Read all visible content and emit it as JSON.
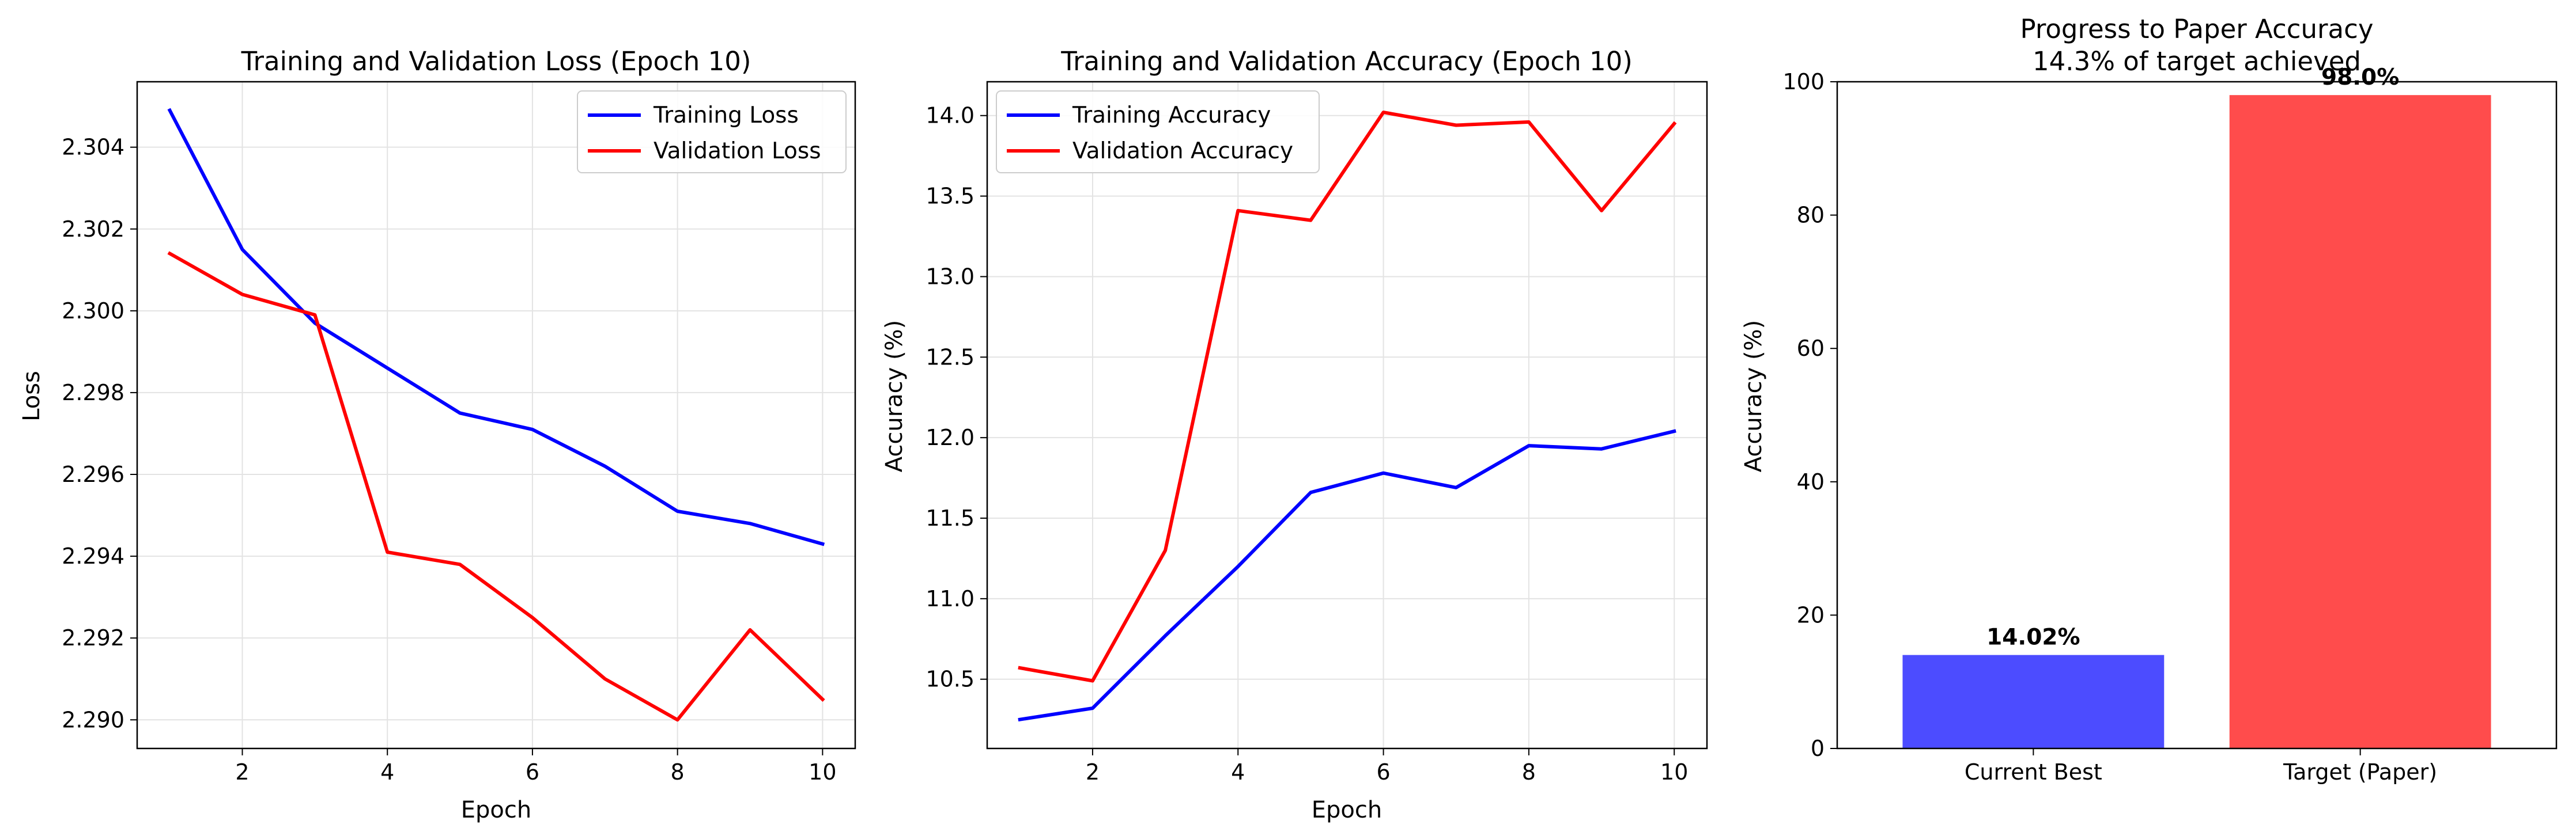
{
  "chart_data": [
    {
      "type": "line",
      "title": "Training and Validation Loss (Epoch 10)",
      "xlabel": "Epoch",
      "ylabel": "Loss",
      "x": [
        1,
        2,
        3,
        4,
        5,
        6,
        7,
        8,
        9,
        10
      ],
      "xticks": [
        2,
        4,
        6,
        8,
        10
      ],
      "yticks": [
        2.29,
        2.292,
        2.294,
        2.296,
        2.298,
        2.3,
        2.302,
        2.304
      ],
      "ytick_decimals": 3,
      "xlim": [
        0.55,
        10.45
      ],
      "ylim": [
        2.2893,
        2.3056
      ],
      "grid": true,
      "legend": "top-right",
      "series": [
        {
          "name": "Training Loss",
          "color": "#0000ff",
          "values": [
            2.3049,
            2.3015,
            2.2997,
            2.2986,
            2.2975,
            2.2971,
            2.2962,
            2.2951,
            2.2948,
            2.2943
          ]
        },
        {
          "name": "Validation Loss",
          "color": "#ff0000",
          "values": [
            2.3014,
            2.3004,
            2.2999,
            2.2941,
            2.2938,
            2.2925,
            2.291,
            2.29,
            2.2922,
            2.2905
          ]
        }
      ]
    },
    {
      "type": "line",
      "title": "Training and Validation Accuracy (Epoch 10)",
      "xlabel": "Epoch",
      "ylabel": "Accuracy (%)",
      "x": [
        1,
        2,
        3,
        4,
        5,
        6,
        7,
        8,
        9,
        10
      ],
      "xticks": [
        2,
        4,
        6,
        8,
        10
      ],
      "yticks": [
        10.5,
        11.0,
        11.5,
        12.0,
        12.5,
        13.0,
        13.5,
        14.0
      ],
      "ytick_decimals": 1,
      "xlim": [
        0.55,
        10.45
      ],
      "ylim": [
        10.07,
        14.21
      ],
      "grid": true,
      "legend": "top-left",
      "series": [
        {
          "name": "Training Accuracy",
          "color": "#0000ff",
          "values": [
            10.25,
            10.32,
            10.77,
            11.2,
            11.66,
            11.78,
            11.69,
            11.95,
            11.93,
            12.04
          ]
        },
        {
          "name": "Validation Accuracy",
          "color": "#ff0000",
          "values": [
            10.57,
            10.49,
            11.3,
            13.41,
            13.35,
            14.02,
            13.94,
            13.96,
            13.41,
            13.95
          ]
        }
      ]
    },
    {
      "type": "bar",
      "title": "Progress to Paper Accuracy",
      "subtitle": "14.3% of target achieved",
      "xlabel": "",
      "ylabel": "Accuracy (%)",
      "categories": [
        "Current Best",
        "Target (Paper)"
      ],
      "values": [
        14.02,
        98.0
      ],
      "data_labels": [
        "14.02%",
        "98.0%"
      ],
      "colors": [
        "#4c4cff",
        "#ff4c4c"
      ],
      "yticks": [
        0,
        20,
        40,
        60,
        80,
        100
      ],
      "ytick_decimals": 0,
      "ylim": [
        0,
        100
      ],
      "grid": false
    }
  ]
}
